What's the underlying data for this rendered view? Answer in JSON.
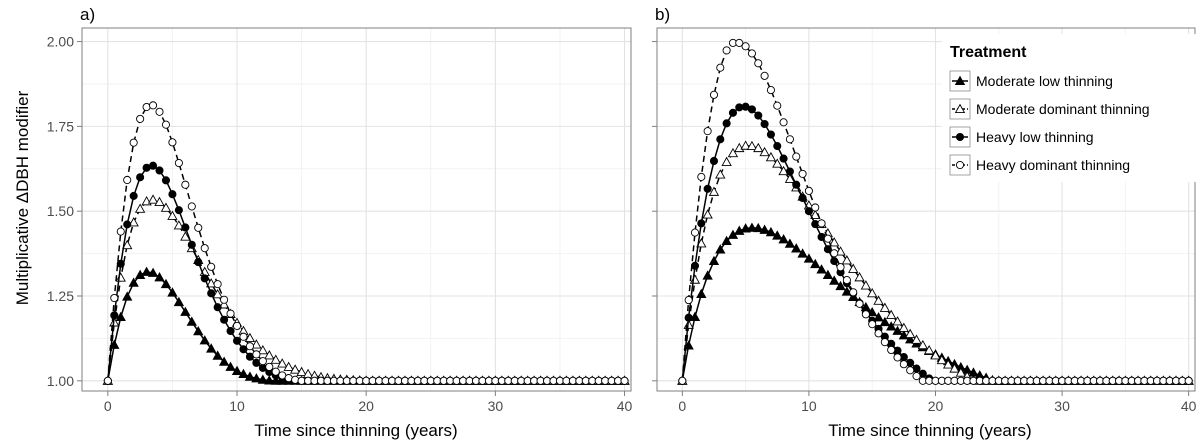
{
  "figure": {
    "ylabel": "Multiplicative  ΔDBH modifier"
  },
  "legend": {
    "title": "Treatment",
    "entries": [
      {
        "label": "Moderate low thinning",
        "marker": "triangle",
        "fill": "#000000",
        "dash": "solid"
      },
      {
        "label": "Moderate dominant thinning",
        "marker": "triangle",
        "fill": "#ffffff",
        "dash": "dashed"
      },
      {
        "label": "Heavy low thinning",
        "marker": "circle",
        "fill": "#000000",
        "dash": "solid"
      },
      {
        "label": "Heavy dominant thinning",
        "marker": "circle",
        "fill": "#ffffff",
        "dash": "dashed"
      }
    ]
  },
  "chart_data": [
    {
      "type": "line",
      "panel_label": "a)",
      "xlabel": "Time since thinning (years)",
      "ylabel": "Multiplicative  ΔDBH modifier",
      "xlim": [
        -2,
        40.5
      ],
      "ylim": [
        0.97,
        2.04
      ],
      "xticks": [
        0,
        10,
        20,
        30,
        40
      ],
      "yticks": [
        1.0,
        1.25,
        1.5,
        1.75,
        2.0
      ],
      "ytick_labels": [
        "1.00",
        "1.25",
        "1.50",
        "1.75",
        "2.00"
      ],
      "grid": true,
      "x": [
        0,
        0.5,
        1,
        1.5,
        2,
        2.5,
        3,
        3.5,
        4,
        4.5,
        5,
        5.5,
        6,
        6.5,
        7,
        7.5,
        8,
        8.5,
        9,
        9.5,
        10,
        10.5,
        11,
        11.5,
        12,
        12.5,
        13,
        13.5,
        14,
        14.5,
        15,
        15.5,
        16,
        16.5,
        17,
        17.5,
        18,
        18.5,
        19,
        19.5,
        20,
        20.5,
        21,
        21.5,
        22,
        22.5,
        23,
        23.5,
        24,
        24.5,
        25,
        25.5,
        26,
        26.5,
        27,
        27.5,
        28,
        28.5,
        29,
        29.5,
        30,
        30.5,
        31,
        31.5,
        32,
        32.5,
        33,
        33.5,
        34,
        34.5,
        35,
        35.5,
        36,
        36.5,
        37,
        37.5,
        38,
        38.5,
        39,
        39.5,
        40
      ],
      "series": [
        {
          "name": "Moderate low thinning",
          "values": [
            1.0,
            1.106,
            1.188,
            1.248,
            1.289,
            1.312,
            1.321,
            1.318,
            1.305,
            1.285,
            1.26,
            1.232,
            1.203,
            1.174,
            1.146,
            1.119,
            1.095,
            1.074,
            1.056,
            1.041,
            1.029,
            1.02,
            1.012,
            1.007,
            1.003,
            1.001,
            1.0,
            1.0,
            1.0,
            1.0,
            1.0,
            1.0,
            1.0,
            1.0,
            1.0,
            1.0,
            1.0,
            1.0,
            1.0,
            1.0,
            1.0,
            1.0,
            1.0,
            1.0,
            1.0,
            1.0,
            1.0,
            1.0,
            1.0,
            1.0,
            1.0,
            1.0,
            1.0,
            1.0,
            1.0,
            1.0,
            1.0,
            1.0,
            1.0,
            1.0,
            1.0,
            1.0,
            1.0,
            1.0,
            1.0,
            1.0,
            1.0,
            1.0,
            1.0,
            1.0,
            1.0,
            1.0,
            1.0,
            1.0,
            1.0,
            1.0,
            1.0,
            1.0,
            1.0,
            1.0,
            1.0
          ]
        },
        {
          "name": "Moderate dominant thinning",
          "values": [
            1.0,
            1.172,
            1.304,
            1.4,
            1.467,
            1.507,
            1.529,
            1.534,
            1.527,
            1.51,
            1.486,
            1.458,
            1.425,
            1.391,
            1.356,
            1.321,
            1.287,
            1.255,
            1.225,
            1.197,
            1.171,
            1.147,
            1.126,
            1.107,
            1.09,
            1.075,
            1.062,
            1.051,
            1.041,
            1.033,
            1.026,
            1.02,
            1.015,
            1.011,
            1.008,
            1.006,
            1.004,
            1.003,
            1.002,
            1.001,
            1.0,
            1.0,
            1.0,
            1.0,
            1.0,
            1.0,
            1.0,
            1.0,
            1.0,
            1.0,
            1.0,
            1.0,
            1.0,
            1.0,
            1.0,
            1.0,
            1.0,
            1.0,
            1.0,
            1.0,
            1.0,
            1.0,
            1.0,
            1.0,
            1.0,
            1.0,
            1.0,
            1.0,
            1.0,
            1.0,
            1.0,
            1.0,
            1.0,
            1.0,
            1.0,
            1.0,
            1.0,
            1.0,
            1.0,
            1.0,
            1.0
          ]
        },
        {
          "name": "Heavy low thinning",
          "values": [
            1.0,
            1.193,
            1.345,
            1.461,
            1.545,
            1.6,
            1.628,
            1.634,
            1.62,
            1.591,
            1.55,
            1.503,
            1.452,
            1.401,
            1.35,
            1.302,
            1.258,
            1.217,
            1.18,
            1.147,
            1.118,
            1.093,
            1.071,
            1.053,
            1.038,
            1.026,
            1.016,
            1.009,
            1.004,
            1.001,
            1.0,
            1.0,
            1.0,
            1.0,
            1.0,
            1.0,
            1.0,
            1.0,
            1.0,
            1.0,
            1.0,
            1.0,
            1.0,
            1.0,
            1.0,
            1.0,
            1.0,
            1.0,
            1.0,
            1.0,
            1.0,
            1.0,
            1.0,
            1.0,
            1.0,
            1.0,
            1.0,
            1.0,
            1.0,
            1.0,
            1.0,
            1.0,
            1.0,
            1.0,
            1.0,
            1.0,
            1.0,
            1.0,
            1.0,
            1.0,
            1.0,
            1.0,
            1.0,
            1.0,
            1.0,
            1.0,
            1.0,
            1.0,
            1.0,
            1.0,
            1.0
          ]
        },
        {
          "name": "Heavy dominant thinning",
          "values": [
            1.0,
            1.244,
            1.44,
            1.592,
            1.702,
            1.772,
            1.807,
            1.812,
            1.793,
            1.755,
            1.703,
            1.642,
            1.578,
            1.514,
            1.451,
            1.391,
            1.336,
            1.285,
            1.239,
            1.198,
            1.162,
            1.13,
            1.102,
            1.078,
            1.058,
            1.041,
            1.027,
            1.016,
            1.008,
            1.003,
            1.0,
            1.0,
            1.0,
            1.0,
            1.0,
            1.0,
            1.0,
            1.0,
            1.0,
            1.0,
            1.0,
            1.0,
            1.0,
            1.0,
            1.0,
            1.0,
            1.0,
            1.0,
            1.0,
            1.0,
            1.0,
            1.0,
            1.0,
            1.0,
            1.0,
            1.0,
            1.0,
            1.0,
            1.0,
            1.0,
            1.0,
            1.0,
            1.0,
            1.0,
            1.0,
            1.0,
            1.0,
            1.0,
            1.0,
            1.0,
            1.0,
            1.0,
            1.0,
            1.0,
            1.0,
            1.0,
            1.0,
            1.0,
            1.0,
            1.0,
            1.0
          ]
        }
      ]
    },
    {
      "type": "line",
      "panel_label": "b)",
      "xlabel": "Time since thinning (years)",
      "ylabel": "",
      "xlim": [
        -2,
        40.5
      ],
      "ylim": [
        0.97,
        2.04
      ],
      "xticks": [
        0,
        10,
        20,
        30,
        40
      ],
      "yticks": [
        1.0,
        1.25,
        1.5,
        1.75,
        2.0
      ],
      "ytick_labels": [],
      "grid": true,
      "x": [
        0,
        0.5,
        1,
        1.5,
        2,
        2.5,
        3,
        3.5,
        4,
        4.5,
        5,
        5.5,
        6,
        6.5,
        7,
        7.5,
        8,
        8.5,
        9,
        9.5,
        10,
        10.5,
        11,
        11.5,
        12,
        12.5,
        13,
        13.5,
        14,
        14.5,
        15,
        15.5,
        16,
        16.5,
        17,
        17.5,
        18,
        18.5,
        19,
        19.5,
        20,
        20.5,
        21,
        21.5,
        22,
        22.5,
        23,
        23.5,
        24,
        24.5,
        25,
        25.5,
        26,
        26.5,
        27,
        27.5,
        28,
        28.5,
        29,
        29.5,
        30,
        30.5,
        31,
        31.5,
        32,
        32.5,
        33,
        33.5,
        34,
        34.5,
        35,
        35.5,
        36,
        36.5,
        37,
        37.5,
        38,
        38.5,
        39,
        39.5,
        40
      ],
      "series": [
        {
          "name": "Moderate low thinning",
          "values": [
            1.0,
            1.104,
            1.188,
            1.256,
            1.31,
            1.353,
            1.387,
            1.412,
            1.43,
            1.442,
            1.449,
            1.451,
            1.45,
            1.445,
            1.438,
            1.428,
            1.417,
            1.404,
            1.39,
            1.375,
            1.36,
            1.344,
            1.328,
            1.312,
            1.295,
            1.279,
            1.263,
            1.247,
            1.232,
            1.217,
            1.202,
            1.187,
            1.173,
            1.16,
            1.147,
            1.134,
            1.122,
            1.11,
            1.099,
            1.088,
            1.078,
            1.068,
            1.058,
            1.049,
            1.04,
            1.032,
            1.024,
            1.016,
            1.009,
            1.002,
            1.0,
            1.0,
            1.0,
            1.0,
            1.0,
            1.0,
            1.0,
            1.0,
            1.0,
            1.0,
            1.0,
            1.0,
            1.0,
            1.0,
            1.0,
            1.0,
            1.0,
            1.0,
            1.0,
            1.0,
            1.0,
            1.0,
            1.0,
            1.0,
            1.0,
            1.0,
            1.0,
            1.0,
            1.0,
            1.0,
            1.0
          ]
        },
        {
          "name": "Moderate dominant thinning",
          "values": [
            1.0,
            1.165,
            1.298,
            1.405,
            1.49,
            1.557,
            1.608,
            1.645,
            1.671,
            1.686,
            1.693,
            1.692,
            1.686,
            1.674,
            1.659,
            1.64,
            1.618,
            1.595,
            1.57,
            1.543,
            1.517,
            1.489,
            1.462,
            1.435,
            1.408,
            1.381,
            1.355,
            1.33,
            1.305,
            1.281,
            1.258,
            1.236,
            1.215,
            1.194,
            1.175,
            1.156,
            1.138,
            1.121,
            1.105,
            1.09,
            1.075,
            1.061,
            1.048,
            1.036,
            1.024,
            1.013,
            1.002,
            1.0,
            1.0,
            1.0,
            1.0,
            1.0,
            1.0,
            1.0,
            1.0,
            1.0,
            1.0,
            1.0,
            1.0,
            1.0,
            1.0,
            1.0,
            1.0,
            1.0,
            1.0,
            1.0,
            1.0,
            1.0,
            1.0,
            1.0,
            1.0,
            1.0,
            1.0,
            1.0,
            1.0,
            1.0,
            1.0,
            1.0,
            1.0,
            1.0,
            1.0
          ]
        },
        {
          "name": "Heavy low thinning",
          "values": [
            1.0,
            1.186,
            1.339,
            1.464,
            1.566,
            1.648,
            1.712,
            1.759,
            1.79,
            1.806,
            1.808,
            1.8,
            1.782,
            1.757,
            1.726,
            1.692,
            1.655,
            1.617,
            1.578,
            1.539,
            1.5,
            1.462,
            1.424,
            1.388,
            1.353,
            1.32,
            1.288,
            1.258,
            1.229,
            1.202,
            1.177,
            1.153,
            1.13,
            1.109,
            1.089,
            1.07,
            1.053,
            1.036,
            1.021,
            1.007,
            1.0,
            1.0,
            1.0,
            1.0,
            1.0,
            1.0,
            1.0,
            1.0,
            1.0,
            1.0,
            1.0,
            1.0,
            1.0,
            1.0,
            1.0,
            1.0,
            1.0,
            1.0,
            1.0,
            1.0,
            1.0,
            1.0,
            1.0,
            1.0,
            1.0,
            1.0,
            1.0,
            1.0,
            1.0,
            1.0,
            1.0,
            1.0,
            1.0,
            1.0,
            1.0,
            1.0,
            1.0,
            1.0,
            1.0,
            1.0,
            1.0
          ]
        },
        {
          "name": "Heavy dominant thinning",
          "values": [
            1.0,
            1.238,
            1.437,
            1.601,
            1.736,
            1.843,
            1.923,
            1.974,
            1.996,
            1.996,
            1.986,
            1.965,
            1.936,
            1.899,
            1.857,
            1.811,
            1.762,
            1.712,
            1.661,
            1.61,
            1.56,
            1.511,
            1.464,
            1.419,
            1.376,
            1.335,
            1.297,
            1.261,
            1.227,
            1.196,
            1.167,
            1.14,
            1.114,
            1.091,
            1.069,
            1.049,
            1.031,
            1.014,
            1.0,
            1.0,
            1.0,
            1.0,
            1.0,
            1.0,
            1.0,
            1.0,
            1.0,
            1.0,
            1.0,
            1.0,
            1.0,
            1.0,
            1.0,
            1.0,
            1.0,
            1.0,
            1.0,
            1.0,
            1.0,
            1.0,
            1.0,
            1.0,
            1.0,
            1.0,
            1.0,
            1.0,
            1.0,
            1.0,
            1.0,
            1.0,
            1.0,
            1.0,
            1.0,
            1.0,
            1.0,
            1.0,
            1.0,
            1.0,
            1.0,
            1.0,
            1.0
          ]
        }
      ]
    }
  ]
}
